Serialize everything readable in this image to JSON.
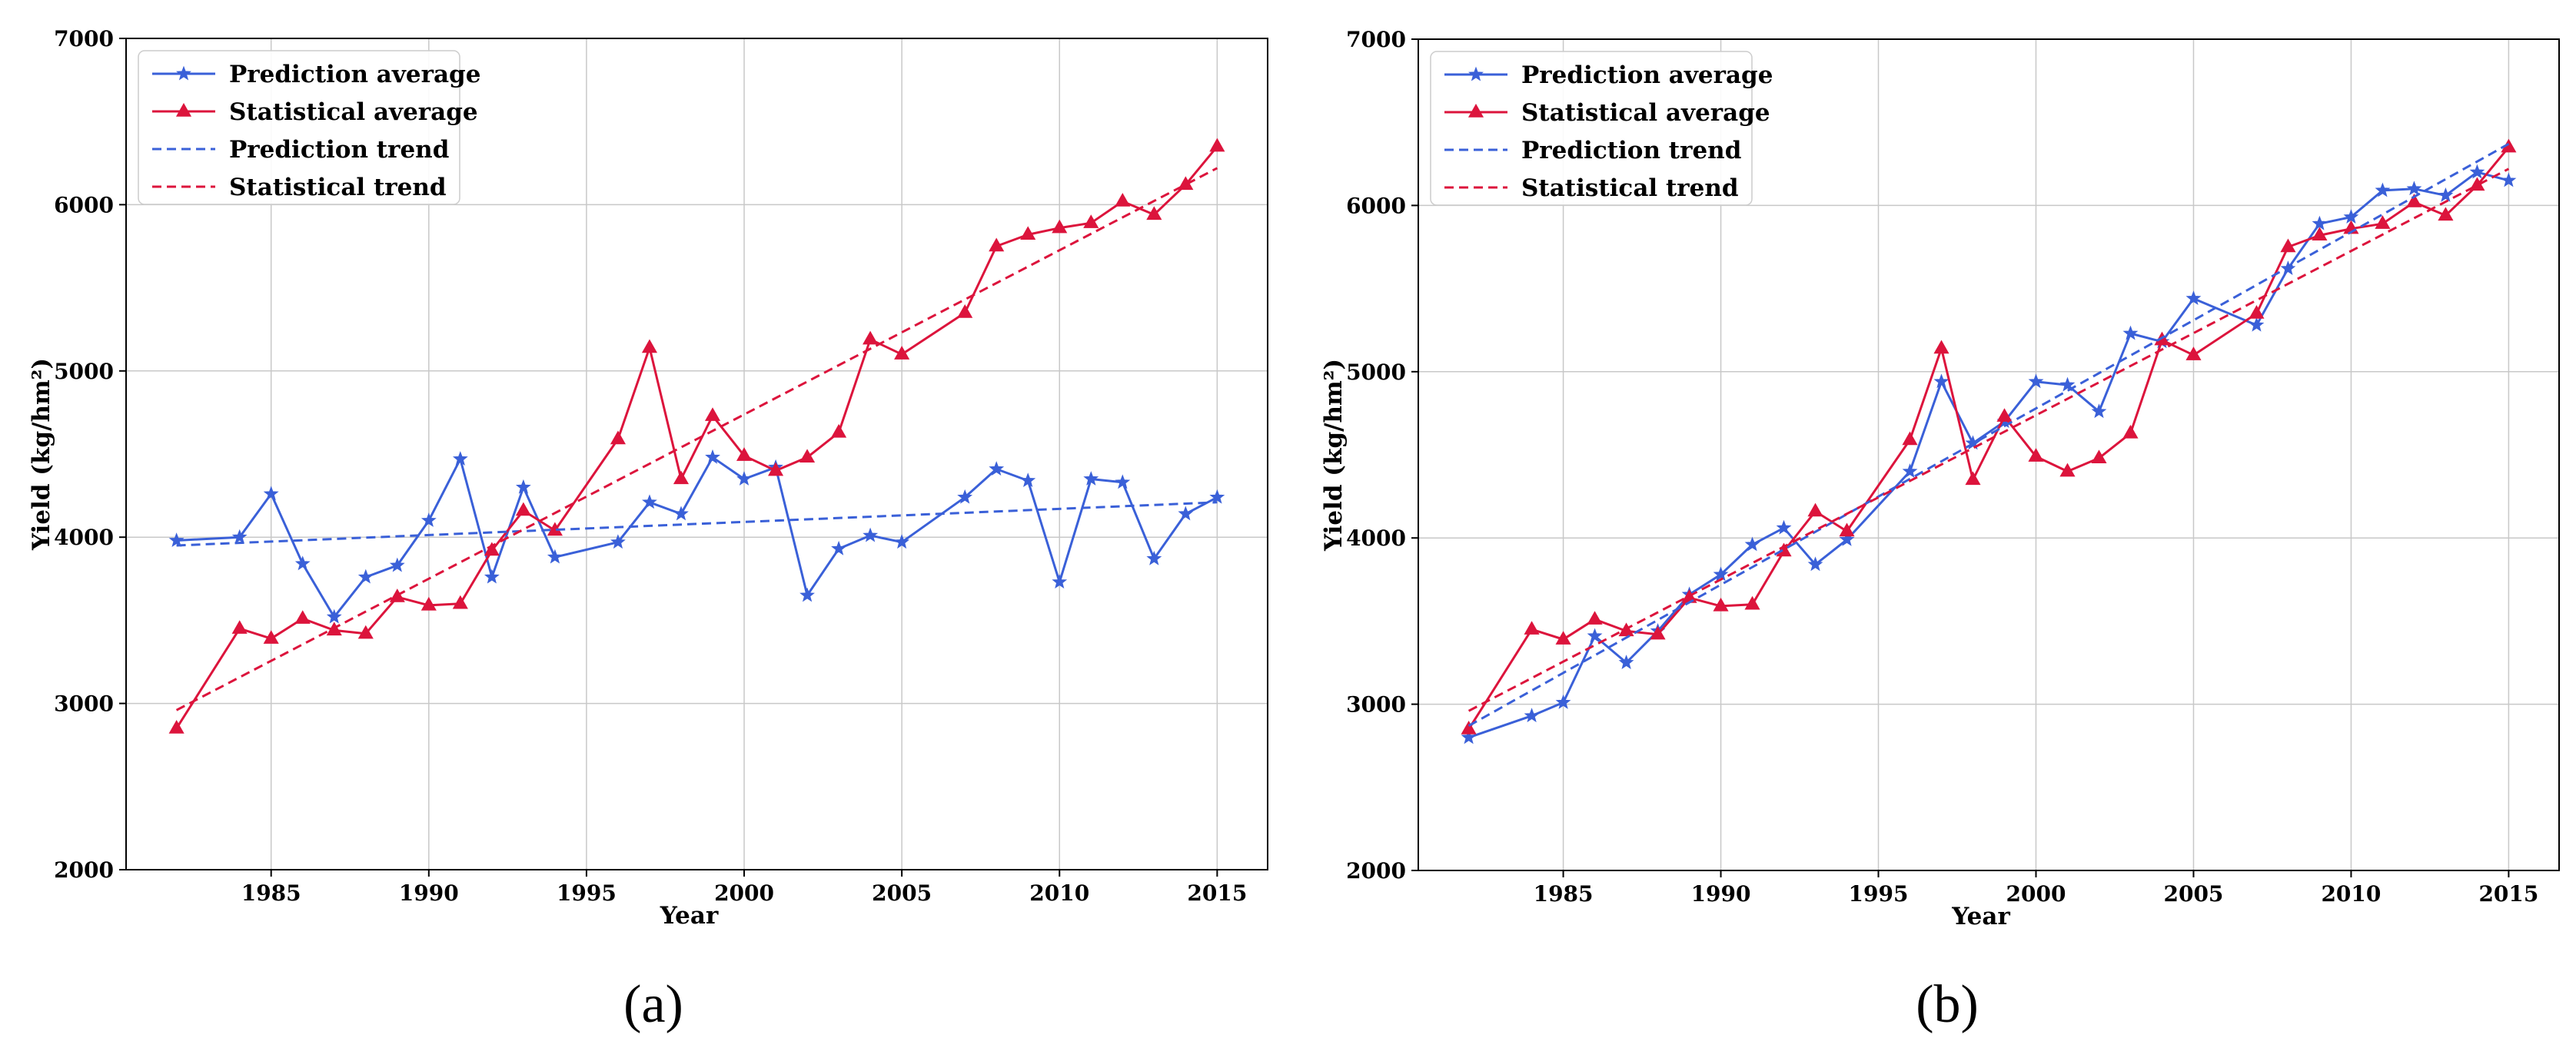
{
  "chart_data": [
    {
      "type": "line",
      "panel_label": "(a)",
      "xlabel": "Year",
      "ylabel": "Yield (kg/hm²)",
      "xlim": [
        1980.4,
        2016.6
      ],
      "ylim": [
        2000,
        7000
      ],
      "x_ticks": [
        1985,
        1990,
        1995,
        2000,
        2005,
        2010,
        2015
      ],
      "y_ticks": [
        2000,
        3000,
        4000,
        5000,
        6000,
        7000
      ],
      "grid": true,
      "legend_position": "top-left",
      "series": [
        {
          "name": "Prediction average",
          "style": "solid",
          "marker": "star",
          "color": "#3a60d8",
          "x": [
            1982,
            1984,
            1985,
            1986,
            1987,
            1988,
            1989,
            1990,
            1991,
            1992,
            1993,
            1994,
            1996,
            1997,
            1998,
            1999,
            2000,
            2001,
            2002,
            2003,
            2004,
            2005,
            2007,
            2008,
            2009,
            2010,
            2011,
            2012,
            2013,
            2014,
            2015
          ],
          "y": [
            3980,
            4000,
            4260,
            3840,
            3520,
            3760,
            3830,
            4100,
            4470,
            3760,
            4300,
            3880,
            3970,
            4210,
            4140,
            4480,
            4350,
            4420,
            3650,
            3930,
            4010,
            3970,
            4240,
            4410,
            4340,
            3730,
            4350,
            4330,
            3870,
            4140,
            4240
          ]
        },
        {
          "name": "Statistical average",
          "style": "solid",
          "marker": "triangle",
          "color": "#dc143c",
          "x": [
            1982,
            1984,
            1985,
            1986,
            1987,
            1988,
            1989,
            1990,
            1991,
            1992,
            1993,
            1994,
            1996,
            1997,
            1998,
            1999,
            2000,
            2001,
            2002,
            2003,
            2004,
            2005,
            2007,
            2008,
            2009,
            2010,
            2011,
            2012,
            2013,
            2014,
            2015
          ],
          "y": [
            2850,
            3450,
            3390,
            3510,
            3440,
            3420,
            3640,
            3590,
            3600,
            3920,
            4160,
            4040,
            4590,
            5140,
            4350,
            4730,
            4490,
            4400,
            4480,
            4630,
            5190,
            5100,
            5350,
            5750,
            5820,
            5860,
            5890,
            6020,
            5940,
            6120,
            6350
          ]
        },
        {
          "name": "Prediction trend",
          "style": "dashed",
          "color": "#3a60d8",
          "x": [
            1982,
            2015
          ],
          "y": [
            3950,
            4210
          ]
        },
        {
          "name": "Statistical trend",
          "style": "dashed",
          "color": "#dc143c",
          "x": [
            1982,
            2015
          ],
          "y": [
            2960,
            6220
          ]
        }
      ]
    },
    {
      "type": "line",
      "panel_label": "(b)",
      "xlabel": "Year",
      "ylabel": "Yield (kg/hm²)",
      "xlim": [
        1980.4,
        2016.6
      ],
      "ylim": [
        2000,
        7000
      ],
      "x_ticks": [
        1985,
        1990,
        1995,
        2000,
        2005,
        2010,
        2015
      ],
      "y_ticks": [
        2000,
        3000,
        4000,
        5000,
        6000,
        7000
      ],
      "grid": true,
      "legend_position": "top-left",
      "series": [
        {
          "name": "Prediction average",
          "style": "solid",
          "marker": "star",
          "color": "#3a60d8",
          "x": [
            1982,
            1984,
            1985,
            1986,
            1987,
            1988,
            1989,
            1990,
            1991,
            1992,
            1993,
            1994,
            1996,
            1997,
            1998,
            1999,
            2000,
            2001,
            2002,
            2003,
            2004,
            2005,
            2007,
            2008,
            2009,
            2010,
            2011,
            2012,
            2013,
            2014,
            2015
          ],
          "y": [
            2800,
            2930,
            3010,
            3410,
            3250,
            3440,
            3660,
            3780,
            3960,
            4060,
            3840,
            3990,
            4400,
            4940,
            4570,
            4700,
            4940,
            4920,
            4760,
            5230,
            5180,
            5440,
            5280,
            5620,
            5890,
            5930,
            6090,
            6100,
            6060,
            6200,
            6150
          ]
        },
        {
          "name": "Statistical average",
          "style": "solid",
          "marker": "triangle",
          "color": "#dc143c",
          "x": [
            1982,
            1984,
            1985,
            1986,
            1987,
            1988,
            1989,
            1990,
            1991,
            1992,
            1993,
            1994,
            1996,
            1997,
            1998,
            1999,
            2000,
            2001,
            2002,
            2003,
            2004,
            2005,
            2007,
            2008,
            2009,
            2010,
            2011,
            2012,
            2013,
            2014,
            2015
          ],
          "y": [
            2850,
            3450,
            3390,
            3510,
            3440,
            3420,
            3640,
            3590,
            3600,
            3920,
            4160,
            4040,
            4590,
            5140,
            4350,
            4730,
            4490,
            4400,
            4480,
            4630,
            5190,
            5100,
            5350,
            5750,
            5820,
            5860,
            5890,
            6020,
            5940,
            6120,
            6350
          ]
        },
        {
          "name": "Prediction trend",
          "style": "dashed",
          "color": "#3a60d8",
          "x": [
            1982,
            2015
          ],
          "y": [
            2870,
            6370
          ]
        },
        {
          "name": "Statistical trend",
          "style": "dashed",
          "color": "#dc143c",
          "x": [
            1982,
            2015
          ],
          "y": [
            2960,
            6220
          ]
        }
      ]
    }
  ]
}
